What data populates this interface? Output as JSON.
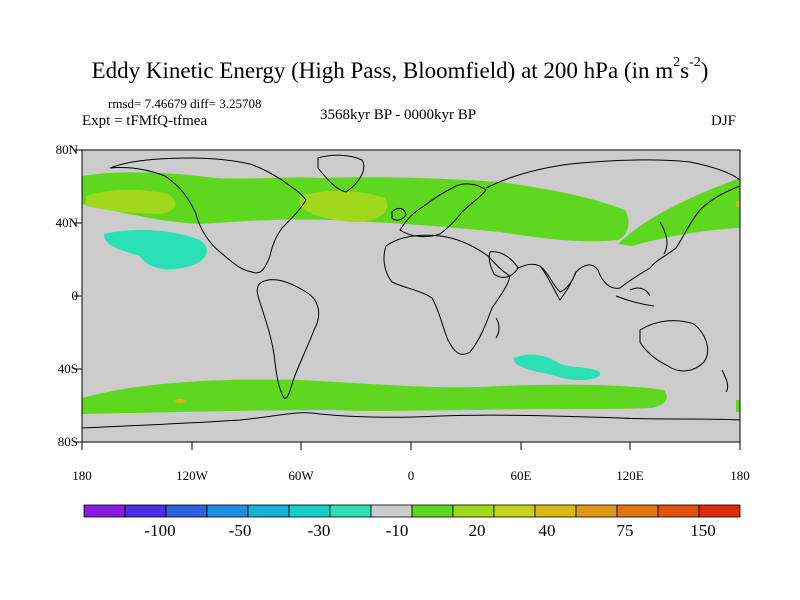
{
  "title_main": "Eddy Kinetic Energy (High Pass, Bloomfield) at 200 hPa (in m",
  "title_sup1": "2",
  "title_s": "s",
  "title_sup2": "-2",
  "title_end": ")",
  "stats": "rmsd= 7.46679 diff= 3.25708",
  "expt": "Expt = tFMfQ-tfmea",
  "period": "3568kyr BP - 0000kyr BP",
  "season": "DJF",
  "lat_labels": [
    "80N",
    "40N",
    "0",
    "40S",
    "80S"
  ],
  "lon_labels": [
    "180",
    "120W",
    "60W",
    "0",
    "60E",
    "120E",
    "180"
  ],
  "colorbar": {
    "colors": [
      "#8a1be0",
      "#4a2fe2",
      "#2e62dc",
      "#1e8fe0",
      "#16afd8",
      "#16cfc8",
      "#2ae0b4",
      "#cccccc",
      "#5ed81e",
      "#a0d81c",
      "#c8d21a",
      "#dcb814",
      "#e2961a",
      "#e07414",
      "#e05010",
      "#dc2c0c"
    ],
    "labels": [
      "-100",
      "-50",
      "-30",
      "-10",
      "20",
      "40",
      "75",
      "150"
    ]
  },
  "anomaly_colors": {
    "positive_low": "#5ed81e",
    "positive_mid": "#a0d81c",
    "positive_high": "#dcb814",
    "negative": "#2ae0b4",
    "neutral": "#cccccc"
  }
}
